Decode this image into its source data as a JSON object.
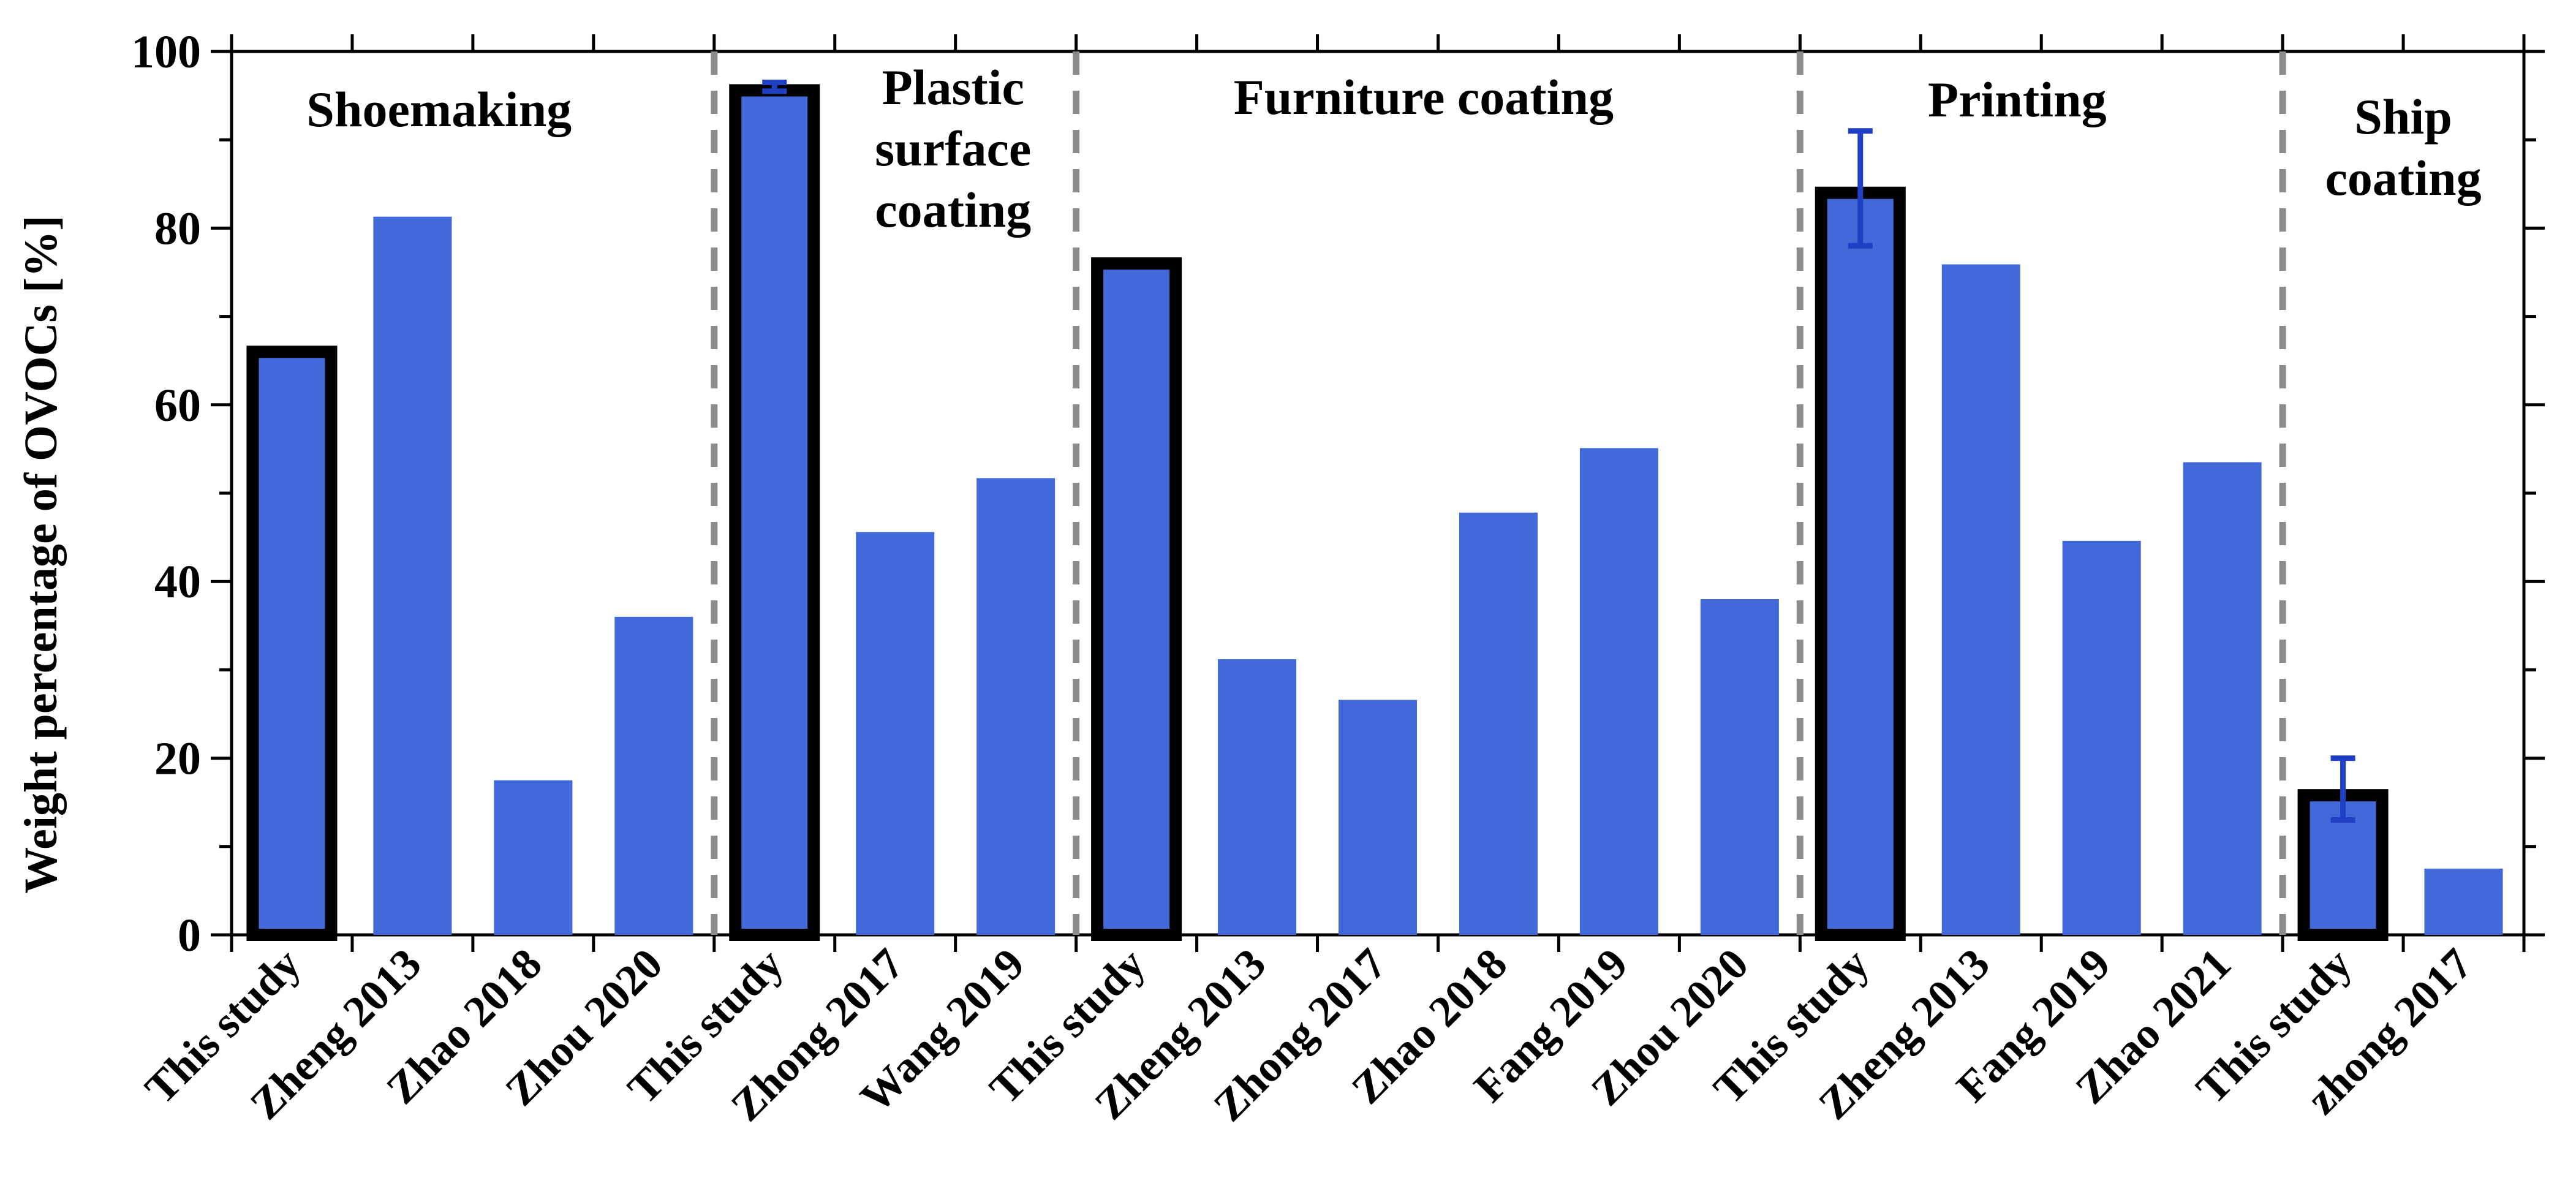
{
  "chart_data": {
    "type": "bar",
    "ylabel": "Weight percentage of OVOCs  [%]",
    "ylim": [
      0,
      100
    ],
    "yticks": [
      0,
      20,
      40,
      60,
      80,
      100
    ],
    "ytick_labels": [
      "0",
      "20",
      "40",
      "60",
      "80",
      "100"
    ],
    "grid": false,
    "bar_color": "#4169D9",
    "highlight_outline_color": "#000000",
    "error_bar_color": "#1F3FC4",
    "separator_color": "#8C8C8C",
    "groups": [
      {
        "label": "Shoemaking",
        "label_lines": [
          "Shoemaking"
        ],
        "bars": [
          {
            "category": "This study",
            "value": 66,
            "highlight": true
          },
          {
            "category": "Zheng 2013",
            "value": 81.3
          },
          {
            "category": "Zhao 2018",
            "value": 17.5
          },
          {
            "category": "Zhou 2020",
            "value": 36
          }
        ]
      },
      {
        "label": "Plastic surface coating",
        "label_lines": [
          "Plastic",
          "surface",
          "coating"
        ],
        "bars": [
          {
            "category": "This study",
            "value": 95.6,
            "highlight": true,
            "error": [
              95.5,
              96.5
            ]
          },
          {
            "category": "Zhong 2017",
            "value": 45.6
          },
          {
            "category": "Wang 2019",
            "value": 51.7
          }
        ]
      },
      {
        "label": "Furniture coating",
        "label_lines": [
          "Furniture coating"
        ],
        "bars": [
          {
            "category": "This study",
            "value": 76,
            "highlight": true
          },
          {
            "category": "Zheng 2013",
            "value": 31.2
          },
          {
            "category": "Zhong 2017",
            "value": 26.6
          },
          {
            "category": "Zhao 2018",
            "value": 47.8
          },
          {
            "category": "Fang 2019",
            "value": 55.1
          },
          {
            "category": "Zhou 2020",
            "value": 38
          }
        ]
      },
      {
        "label": "Printing",
        "label_lines": [
          "Printing"
        ],
        "bars": [
          {
            "category": "This study",
            "value": 84,
            "highlight": true,
            "error": [
              78,
              91
            ]
          },
          {
            "category": "Zheng 2013",
            "value": 75.9
          },
          {
            "category": "Fang 2019",
            "value": 44.6
          },
          {
            "category": "Zhao 2021",
            "value": 53.5
          }
        ]
      },
      {
        "label": "Ship coating",
        "label_lines": [
          "Ship",
          "coating"
        ],
        "bars": [
          {
            "category": "This study",
            "value": 15.8,
            "highlight": true,
            "error": [
              13,
              20
            ]
          },
          {
            "category": "zhong 2017",
            "value": 7.5
          }
        ]
      }
    ]
  }
}
